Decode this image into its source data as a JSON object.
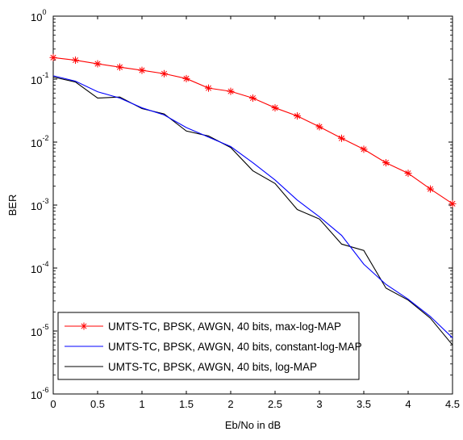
{
  "chart_data": {
    "type": "line",
    "title": "",
    "xlabel": "Eb/No in dB",
    "ylabel": "BER",
    "xlim": [
      0,
      4.5
    ],
    "ylim": [
      1e-06,
      1
    ],
    "y_scale": "log",
    "grid": false,
    "legend_placement": "bottom-left",
    "x_ticks": [
      "0",
      "0.5",
      "1",
      "1.5",
      "2",
      "2.5",
      "3",
      "3.5",
      "4",
      "4.5"
    ],
    "y_ticks": [
      {
        "base": "10",
        "exp": "0",
        "value": 1
      },
      {
        "base": "10",
        "exp": "-1",
        "value": 0.1
      },
      {
        "base": "10",
        "exp": "-2",
        "value": 0.01
      },
      {
        "base": "10",
        "exp": "-3",
        "value": 0.001
      },
      {
        "base": "10",
        "exp": "-4",
        "value": 0.0001
      },
      {
        "base": "10",
        "exp": "-5",
        "value": 1e-05
      },
      {
        "base": "10",
        "exp": "-6",
        "value": 1e-06
      }
    ],
    "series": [
      {
        "name": "UMTS-TC, BPSK, AWGN, 40 bits, max-log-MAP",
        "color": "#ff0000",
        "marker": "asterisk",
        "x": [
          0,
          0.25,
          0.5,
          0.75,
          1,
          1.25,
          1.5,
          1.75,
          2,
          2.25,
          2.5,
          2.75,
          3,
          3.25,
          3.5,
          3.75,
          4,
          4.25,
          4.5
        ],
        "y": [
          0.22,
          0.2,
          0.175,
          0.155,
          0.138,
          0.122,
          0.102,
          0.072,
          0.064,
          0.05,
          0.035,
          0.026,
          0.0175,
          0.0115,
          0.0077,
          0.0047,
          0.0032,
          0.0018,
          0.00105
        ]
      },
      {
        "name": "UMTS-TC, BPSK, AWGN, 40 bits, constant-log-MAP",
        "color": "#0000ff",
        "marker": "none",
        "x": [
          0,
          0.25,
          0.5,
          0.75,
          1,
          1.25,
          1.5,
          1.75,
          2,
          2.25,
          2.5,
          2.75,
          3,
          3.25,
          3.5,
          3.75,
          4,
          4.25,
          4.5
        ],
        "y": [
          0.113,
          0.093,
          0.063,
          0.05,
          0.035,
          0.027,
          0.017,
          0.012,
          0.0085,
          0.0047,
          0.0025,
          0.0012,
          0.00065,
          0.00033,
          0.000115,
          5.5e-05,
          3.2e-05,
          1.7e-05,
          7.8e-06
        ]
      },
      {
        "name": "UMTS-TC, BPSK, AWGN, 40 bits, log-MAP",
        "color": "#000000",
        "marker": "none",
        "x": [
          0,
          0.25,
          0.5,
          0.75,
          1,
          1.25,
          1.5,
          1.75,
          2,
          2.25,
          2.5,
          2.75,
          3,
          3.25,
          3.5,
          3.75,
          4,
          4.25,
          4.5
        ],
        "y": [
          0.108,
          0.09,
          0.05,
          0.052,
          0.034,
          0.028,
          0.015,
          0.0125,
          0.0082,
          0.0035,
          0.0022,
          0.00085,
          0.0006,
          0.00024,
          0.00019,
          4.8e-05,
          3.1e-05,
          1.6e-05,
          6e-06
        ]
      }
    ]
  }
}
